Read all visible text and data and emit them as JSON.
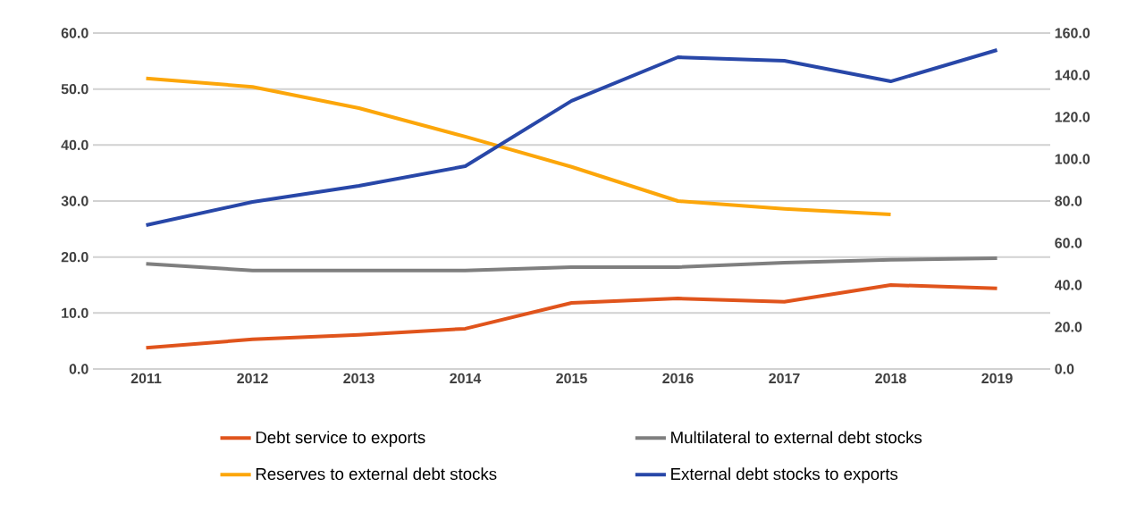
{
  "chart_data": {
    "type": "line",
    "categories": [
      "2011",
      "2012",
      "2013",
      "2014",
      "2015",
      "2016",
      "2017",
      "2018",
      "2019"
    ],
    "series": [
      {
        "name": "Debt service to exports",
        "color": "#e0541c",
        "values": [
          3.8,
          5.3,
          6.1,
          7.2,
          11.8,
          12.6,
          12.0,
          15.0,
          14.4
        ]
      },
      {
        "name": "Multilateral to external debt stocks",
        "color": "#7f7f7f",
        "values": [
          18.8,
          17.6,
          17.6,
          17.6,
          18.2,
          18.2,
          19.0,
          19.5,
          19.8
        ]
      },
      {
        "name": "Reserves to external debt stocks",
        "color": "#fca60a",
        "values": [
          51.9,
          50.4,
          46.6,
          41.5,
          36.1,
          30.0,
          28.6,
          27.6,
          null
        ]
      },
      {
        "name": "External debt stocks to exports",
        "color": "#2847a8",
        "axis": "y2",
        "values": [
          68.5,
          79.6,
          87.2,
          96.6,
          127.7,
          148.5,
          146.8,
          137.0,
          151.9
        ]
      }
    ],
    "ylim": [
      0,
      60
    ],
    "yticks": [
      {
        "value": 0,
        "label": "0.0"
      },
      {
        "value": 10,
        "label": "10.0"
      },
      {
        "value": 20,
        "label": "20.0"
      },
      {
        "value": 30,
        "label": "30.0"
      },
      {
        "value": 40,
        "label": "40.0"
      },
      {
        "value": 50,
        "label": "50.0"
      },
      {
        "value": 60,
        "label": "60.0"
      }
    ],
    "y2lim": [
      0,
      160
    ],
    "y2ticks": [
      {
        "value": 0,
        "label": "0.0"
      },
      {
        "value": 20,
        "label": "20.0"
      },
      {
        "value": 40,
        "label": "40.0"
      },
      {
        "value": 60,
        "label": "60.0"
      },
      {
        "value": 80,
        "label": "80.0"
      },
      {
        "value": 100,
        "label": "100.0"
      },
      {
        "value": 120,
        "label": "120.0"
      },
      {
        "value": 140,
        "label": "140.0"
      },
      {
        "value": 160,
        "label": "160.0"
      }
    ],
    "grid": "y",
    "legend": "bottom",
    "marker": "none"
  }
}
